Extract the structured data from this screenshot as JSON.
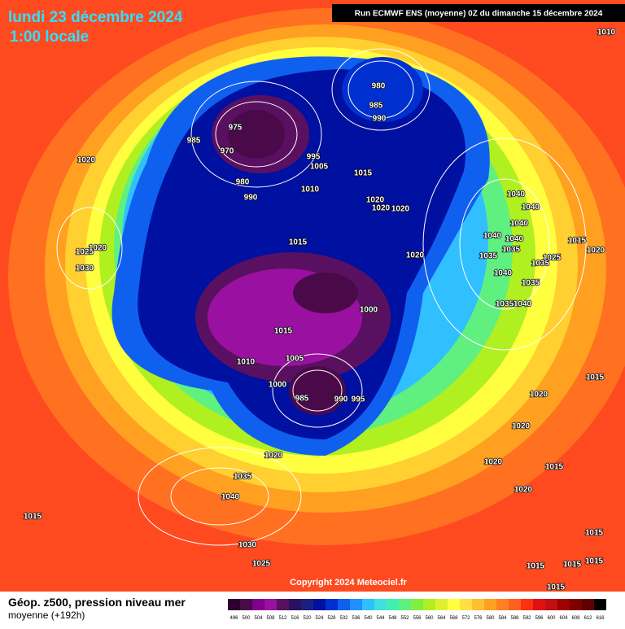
{
  "header": {
    "date": "lundi 23 décembre 2024",
    "time": "1:00 locale",
    "run": "Run ECMWF ENS (moyenne) 0Z du dimanche 15 décembre 2024"
  },
  "footer": {
    "title": "Géop. z500, pression niveau mer",
    "subtitle": "moyenne  (+192h)",
    "copyright": "Copyright 2024 Meteociel.fr"
  },
  "legend": {
    "values": [
      496,
      500,
      504,
      508,
      512,
      516,
      520,
      524,
      528,
      532,
      536,
      540,
      544,
      548,
      552,
      556,
      560,
      564,
      568,
      572,
      576,
      580,
      584,
      588,
      592,
      596,
      600,
      604,
      608,
      612,
      616
    ],
    "colors": [
      "#2e0030",
      "#4a0a4a",
      "#80008a",
      "#9a10a0",
      "#5a1060",
      "#2a1060",
      "#1a2080",
      "#0010a0",
      "#0030d0",
      "#1060f0",
      "#2090ff",
      "#30c0ff",
      "#40e0e0",
      "#40f0b0",
      "#60f080",
      "#80f040",
      "#b0f020",
      "#e0f030",
      "#ffff40",
      "#ffe040",
      "#ffc030",
      "#ffa020",
      "#ff8020",
      "#ff6020",
      "#ff3010",
      "#e01010",
      "#c01010",
      "#a00000",
      "#800000",
      "#600000",
      "#000000"
    ]
  },
  "isobars": [
    "985",
    "975",
    "970",
    "980",
    "990",
    "980",
    "985",
    "990",
    "995",
    "1005",
    "1010",
    "1015",
    "1020",
    "1020",
    "1020",
    "1020",
    "1040",
    "1040",
    "1040",
    "1040",
    "1040",
    "1035",
    "1035",
    "1015",
    "1020",
    "1025",
    "1035",
    "1040",
    "1035",
    "1035",
    "1040",
    "1015",
    "1020",
    "1000",
    "1015",
    "1010",
    "1005",
    "1000",
    "985",
    "990",
    "995",
    "1025",
    "1020",
    "1030",
    "1015",
    "1020",
    "1020",
    "1020",
    "1015",
    "1020",
    "1020",
    "1035",
    "1040",
    "1015",
    "1030",
    "1025",
    "1015",
    "1015",
    "1015",
    "1015",
    "1015",
    "1010"
  ]
}
